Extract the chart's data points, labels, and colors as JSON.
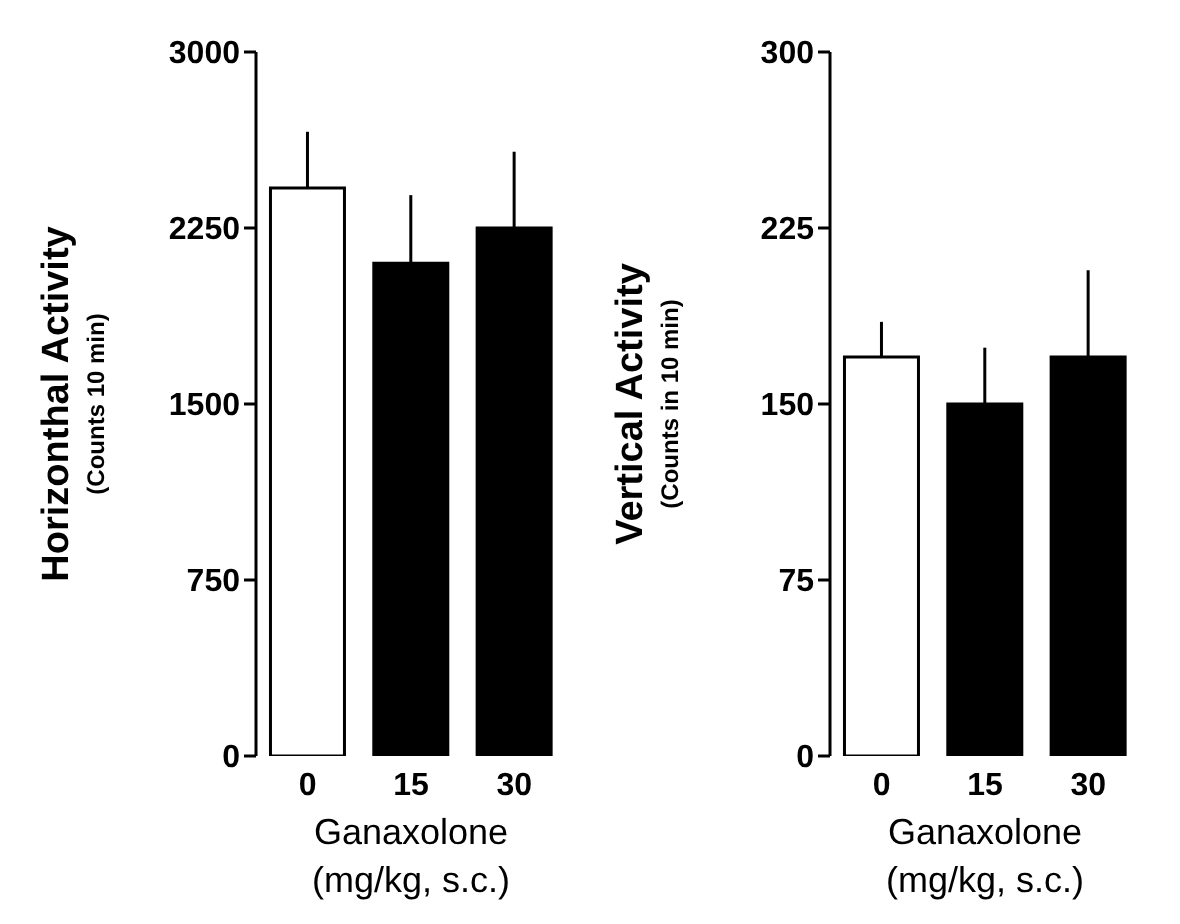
{
  "chart_data": [
    {
      "type": "bar",
      "xlabel": "Ganaxolone\n(mg/kg, s.c.)",
      "ylabel": "Horizonthal Activity\n(Counts 10 min)",
      "categories": [
        "0",
        "15",
        "30"
      ],
      "values": [
        2420,
        2100,
        2250
      ],
      "colors": [
        "#ffffff",
        "#000000",
        "#000000"
      ],
      "errors": [
        [
          2420,
          2660
        ],
        [
          2100,
          2390
        ],
        [
          2250,
          2575
        ]
      ],
      "ylim": [
        0,
        3000
      ],
      "yticks": [
        0,
        750,
        1500,
        2250,
        3000
      ]
    },
    {
      "type": "bar",
      "xlabel": "Ganaxolone\n(mg/kg, s.c.)",
      "ylabel": "Vertical Activity\n(Counts in 10 min)",
      "categories": [
        "0",
        "15",
        "30"
      ],
      "values": [
        170,
        150,
        170
      ],
      "colors": [
        "#ffffff",
        "#000000",
        "#000000"
      ],
      "errors": [
        [
          170,
          185
        ],
        [
          150,
          174
        ],
        [
          170,
          207
        ]
      ],
      "ylim": [
        0,
        300
      ],
      "yticks": [
        0,
        75,
        150,
        225,
        300
      ]
    }
  ]
}
